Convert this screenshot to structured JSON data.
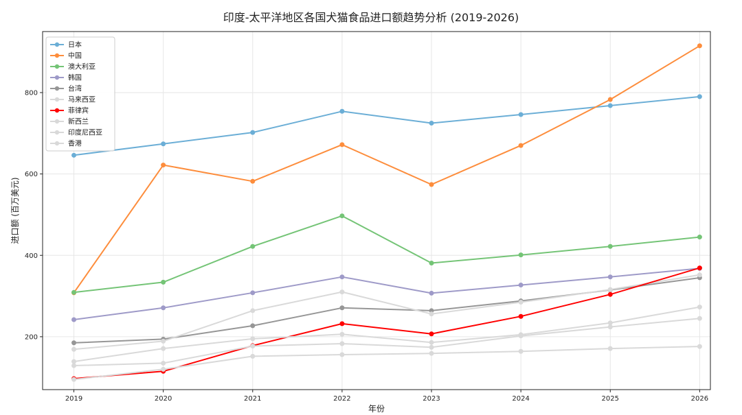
{
  "chart_data": {
    "type": "line",
    "title": "印度-太平洋地区各国犬猫食品进口额趋势分析 (2019-2026)",
    "xlabel": "年份",
    "ylabel": "进口额 (百万美元)",
    "x": [
      2019,
      2020,
      2021,
      2022,
      2023,
      2024,
      2025,
      2026
    ],
    "xlim": [
      2018.65,
      2026.12
    ],
    "ylim": [
      70,
      950
    ],
    "yticks": [
      200,
      400,
      600,
      800
    ],
    "grid": true,
    "legend_position": "top-left",
    "series": [
      {
        "name": "日本",
        "color": "#6baed6",
        "values": [
          646,
          674,
          702,
          754,
          725,
          746,
          768,
          790
        ]
      },
      {
        "name": "中国",
        "color": "#fd8d3c",
        "values": [
          308,
          622,
          582,
          672,
          574,
          670,
          783,
          915
        ]
      },
      {
        "name": "澳大利亚",
        "color": "#74c476",
        "values": [
          309,
          334,
          422,
          497,
          381,
          401,
          422,
          445
        ]
      },
      {
        "name": "韩国",
        "color": "#9e9ac8",
        "values": [
          242,
          271,
          308,
          347,
          307,
          327,
          347,
          368
        ]
      },
      {
        "name": "台湾",
        "color": "#969696",
        "values": [
          185,
          194,
          227,
          271,
          264,
          288,
          315,
          345
        ]
      },
      {
        "name": "马来西亚",
        "color": "#d9d9d9",
        "values": [
          169,
          189,
          264,
          310,
          256,
          285,
          316,
          352
        ]
      },
      {
        "name": "菲律宾",
        "color": "#ff0000",
        "values": [
          97,
          115,
          178,
          232,
          207,
          250,
          304,
          369
        ]
      },
      {
        "name": "新西兰",
        "color": "#d9d9d9",
        "values": [
          139,
          171,
          195,
          206,
          186,
          205,
          234,
          273
        ]
      },
      {
        "name": "印度尼西亚",
        "color": "#d9d9d9",
        "values": [
          129,
          135,
          177,
          183,
          174,
          202,
          224,
          245
        ]
      },
      {
        "name": "香港",
        "color": "#d9d9d9",
        "values": [
          95,
          120,
          152,
          156,
          159,
          164,
          171,
          176
        ]
      }
    ]
  }
}
